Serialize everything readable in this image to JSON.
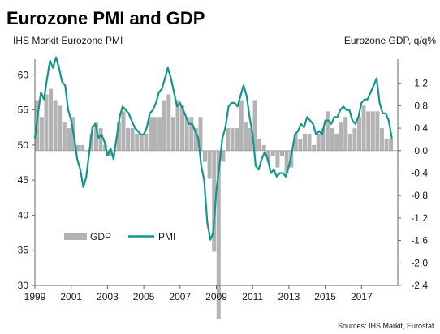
{
  "chart_data": {
    "type": "bar+line",
    "title": "Eurozone PMI and GDP",
    "left_axis_label": "IHS Markit Eurozone PMI",
    "right_axis_label": "Eurozone GDP, q/q%",
    "source": "Sources: IHS Markit, Eurostat.",
    "left_ylim": [
      30,
      62
    ],
    "right_ylim": [
      -2.4,
      1.6
    ],
    "left_ticks": [
      "60",
      "55",
      "50",
      "45",
      "40",
      "35",
      "30"
    ],
    "right_ticks": [
      "1.2",
      "0.8",
      "0.4",
      "0.0",
      "-0.4",
      "-0.8",
      "-1.2",
      "-1.6",
      "-2.0",
      "-2.4"
    ],
    "x_ticks": [
      "1999",
      "2001",
      "2003",
      "2005",
      "2007",
      "2009",
      "2011",
      "2013",
      "2015",
      "2017"
    ],
    "xlim": [
      1999.0,
      2019.0
    ],
    "legend": {
      "gdp": "GDP",
      "pmi": "PMI"
    },
    "colors": {
      "gdp": "#b3b3b3",
      "pmi": "#14958b",
      "axis": "#666666"
    },
    "series": [
      {
        "name": "GDP",
        "axis": "right",
        "kind": "bar",
        "x": [
          1999.0,
          1999.25,
          1999.5,
          1999.75,
          2000.0,
          2000.25,
          2000.5,
          2000.75,
          2001.0,
          2001.25,
          2001.5,
          2001.75,
          2002.0,
          2002.25,
          2002.5,
          2002.75,
          2003.0,
          2003.25,
          2003.5,
          2003.75,
          2004.0,
          2004.25,
          2004.5,
          2004.75,
          2005.0,
          2005.25,
          2005.5,
          2005.75,
          2006.0,
          2006.25,
          2006.5,
          2006.75,
          2007.0,
          2007.25,
          2007.5,
          2007.75,
          2008.0,
          2008.25,
          2008.5,
          2008.75,
          2009.0,
          2009.25,
          2009.5,
          2009.75,
          2010.0,
          2010.25,
          2010.5,
          2010.75,
          2011.0,
          2011.25,
          2011.5,
          2011.75,
          2012.0,
          2012.25,
          2012.5,
          2012.75,
          2013.0,
          2013.25,
          2013.5,
          2013.75,
          2014.0,
          2014.25,
          2014.5,
          2014.75,
          2015.0,
          2015.25,
          2015.5,
          2015.75,
          2016.0,
          2016.25,
          2016.5,
          2016.75,
          2017.0,
          2017.25,
          2017.5,
          2017.75,
          2018.0,
          2018.25,
          2018.5
        ],
        "values": [
          0.9,
          0.6,
          1.0,
          1.1,
          0.9,
          0.8,
          0.5,
          0.4,
          0.6,
          0.1,
          0.1,
          0.0,
          0.3,
          0.5,
          0.4,
          0.1,
          -0.1,
          0.0,
          0.5,
          0.7,
          0.4,
          0.4,
          0.3,
          0.3,
          0.3,
          0.6,
          0.6,
          0.6,
          0.9,
          1.0,
          0.6,
          0.9,
          0.8,
          0.6,
          0.6,
          0.4,
          0.6,
          -0.2,
          -0.5,
          -1.8,
          -3.0,
          -0.2,
          0.4,
          0.4,
          0.4,
          0.9,
          0.5,
          0.4,
          0.9,
          0.2,
          0.1,
          -0.2,
          -0.1,
          -0.3,
          -0.1,
          -0.4,
          -0.3,
          0.3,
          0.2,
          0.3,
          0.3,
          0.1,
          0.3,
          0.4,
          0.7,
          0.4,
          0.3,
          0.5,
          0.6,
          0.3,
          0.4,
          0.6,
          0.8,
          0.7,
          0.7,
          0.7,
          0.4,
          0.2,
          0.2
        ]
      },
      {
        "name": "PMI",
        "axis": "left",
        "kind": "line",
        "x": [
          1999.0,
          1999.17,
          1999.33,
          1999.5,
          1999.67,
          1999.83,
          2000.0,
          2000.17,
          2000.33,
          2000.5,
          2000.67,
          2000.83,
          2001.0,
          2001.17,
          2001.33,
          2001.5,
          2001.67,
          2001.83,
          2002.0,
          2002.17,
          2002.33,
          2002.5,
          2002.67,
          2002.83,
          2003.0,
          2003.17,
          2003.33,
          2003.5,
          2003.67,
          2003.83,
          2004.0,
          2004.17,
          2004.33,
          2004.5,
          2004.67,
          2004.83,
          2005.0,
          2005.17,
          2005.33,
          2005.5,
          2005.67,
          2005.83,
          2006.0,
          2006.17,
          2006.33,
          2006.5,
          2006.67,
          2006.83,
          2007.0,
          2007.17,
          2007.33,
          2007.5,
          2007.67,
          2007.83,
          2008.0,
          2008.17,
          2008.33,
          2008.5,
          2008.67,
          2008.83,
          2009.0,
          2009.17,
          2009.33,
          2009.5,
          2009.67,
          2009.83,
          2010.0,
          2010.17,
          2010.33,
          2010.5,
          2010.67,
          2010.83,
          2011.0,
          2011.17,
          2011.33,
          2011.5,
          2011.67,
          2011.83,
          2012.0,
          2012.17,
          2012.33,
          2012.5,
          2012.67,
          2012.83,
          2013.0,
          2013.17,
          2013.33,
          2013.5,
          2013.67,
          2013.83,
          2014.0,
          2014.17,
          2014.33,
          2014.5,
          2014.67,
          2014.83,
          2015.0,
          2015.17,
          2015.33,
          2015.5,
          2015.67,
          2015.83,
          2016.0,
          2016.17,
          2016.33,
          2016.5,
          2016.67,
          2016.83,
          2017.0,
          2017.17,
          2017.33,
          2017.5,
          2017.67,
          2017.83,
          2018.0,
          2018.17,
          2018.33,
          2018.5,
          2018.67
        ],
        "values": [
          51.0,
          54.5,
          57.5,
          56.5,
          59.5,
          62.0,
          61.0,
          62.5,
          61.0,
          59.0,
          58.5,
          55.0,
          53.5,
          51.0,
          48.0,
          46.5,
          44.0,
          45.5,
          49.0,
          52.5,
          53.0,
          51.0,
          51.5,
          50.5,
          48.5,
          49.5,
          48.0,
          51.0,
          54.0,
          55.5,
          55.0,
          54.5,
          53.5,
          52.5,
          52.0,
          51.5,
          51.5,
          52.5,
          54.5,
          55.0,
          56.0,
          57.5,
          58.0,
          59.5,
          61.0,
          59.5,
          57.5,
          55.5,
          56.0,
          55.0,
          54.0,
          53.0,
          53.0,
          52.0,
          51.0,
          47.0,
          45.0,
          39.0,
          36.5,
          37.5,
          43.5,
          47.0,
          51.0,
          52.5,
          55.5,
          56.0,
          56.0,
          55.5,
          57.0,
          58.5,
          57.0,
          54.0,
          51.5,
          47.0,
          46.5,
          48.0,
          49.0,
          48.0,
          46.0,
          46.5,
          45.5,
          46.0,
          46.0,
          45.5,
          47.0,
          49.0,
          51.5,
          52.0,
          53.0,
          52.5,
          54.0,
          53.5,
          53.0,
          51.5,
          52.0,
          51.5,
          53.5,
          53.5,
          53.0,
          54.0,
          54.0,
          55.0,
          55.5,
          55.0,
          55.0,
          53.5,
          53.0,
          54.0,
          56.0,
          56.5,
          56.5,
          57.5,
          58.5,
          59.5,
          56.0,
          54.5,
          54.5,
          53.5,
          51.0
        ]
      }
    ]
  }
}
